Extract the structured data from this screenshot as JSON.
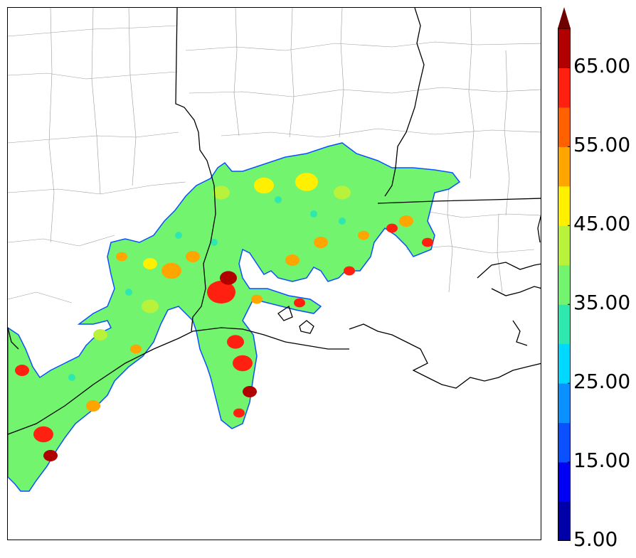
{
  "colorbar": {
    "tick_labels": [
      "5.00",
      "15.00",
      "25.00",
      "35.00",
      "45.00",
      "55.00",
      "65.00"
    ],
    "levels": [
      5,
      10,
      15,
      20,
      25,
      30,
      35,
      40,
      45,
      50,
      55,
      60,
      65,
      70
    ],
    "extend": "max",
    "colors": [
      "#0000a8",
      "#0000f2",
      "#0a50ff",
      "#0a90ff",
      "#00d8ff",
      "#2ee8b0",
      "#72f46e",
      "#b8f23a",
      "#fff000",
      "#ffa500",
      "#ff6000",
      "#ff2010",
      "#b00000"
    ],
    "extend_color": "#700000"
  },
  "map": {
    "coast_color": "#000000",
    "county_color": "#9a9a9a",
    "field_colors": {
      "low": "#72f46e",
      "mid": "#b8f23a",
      "high": "#fff000",
      "teal": "#2ee8b0",
      "edge": "#0a50ff",
      "orange": "#ffa500",
      "red": "#ff2010",
      "darkred": "#b00000"
    }
  }
}
